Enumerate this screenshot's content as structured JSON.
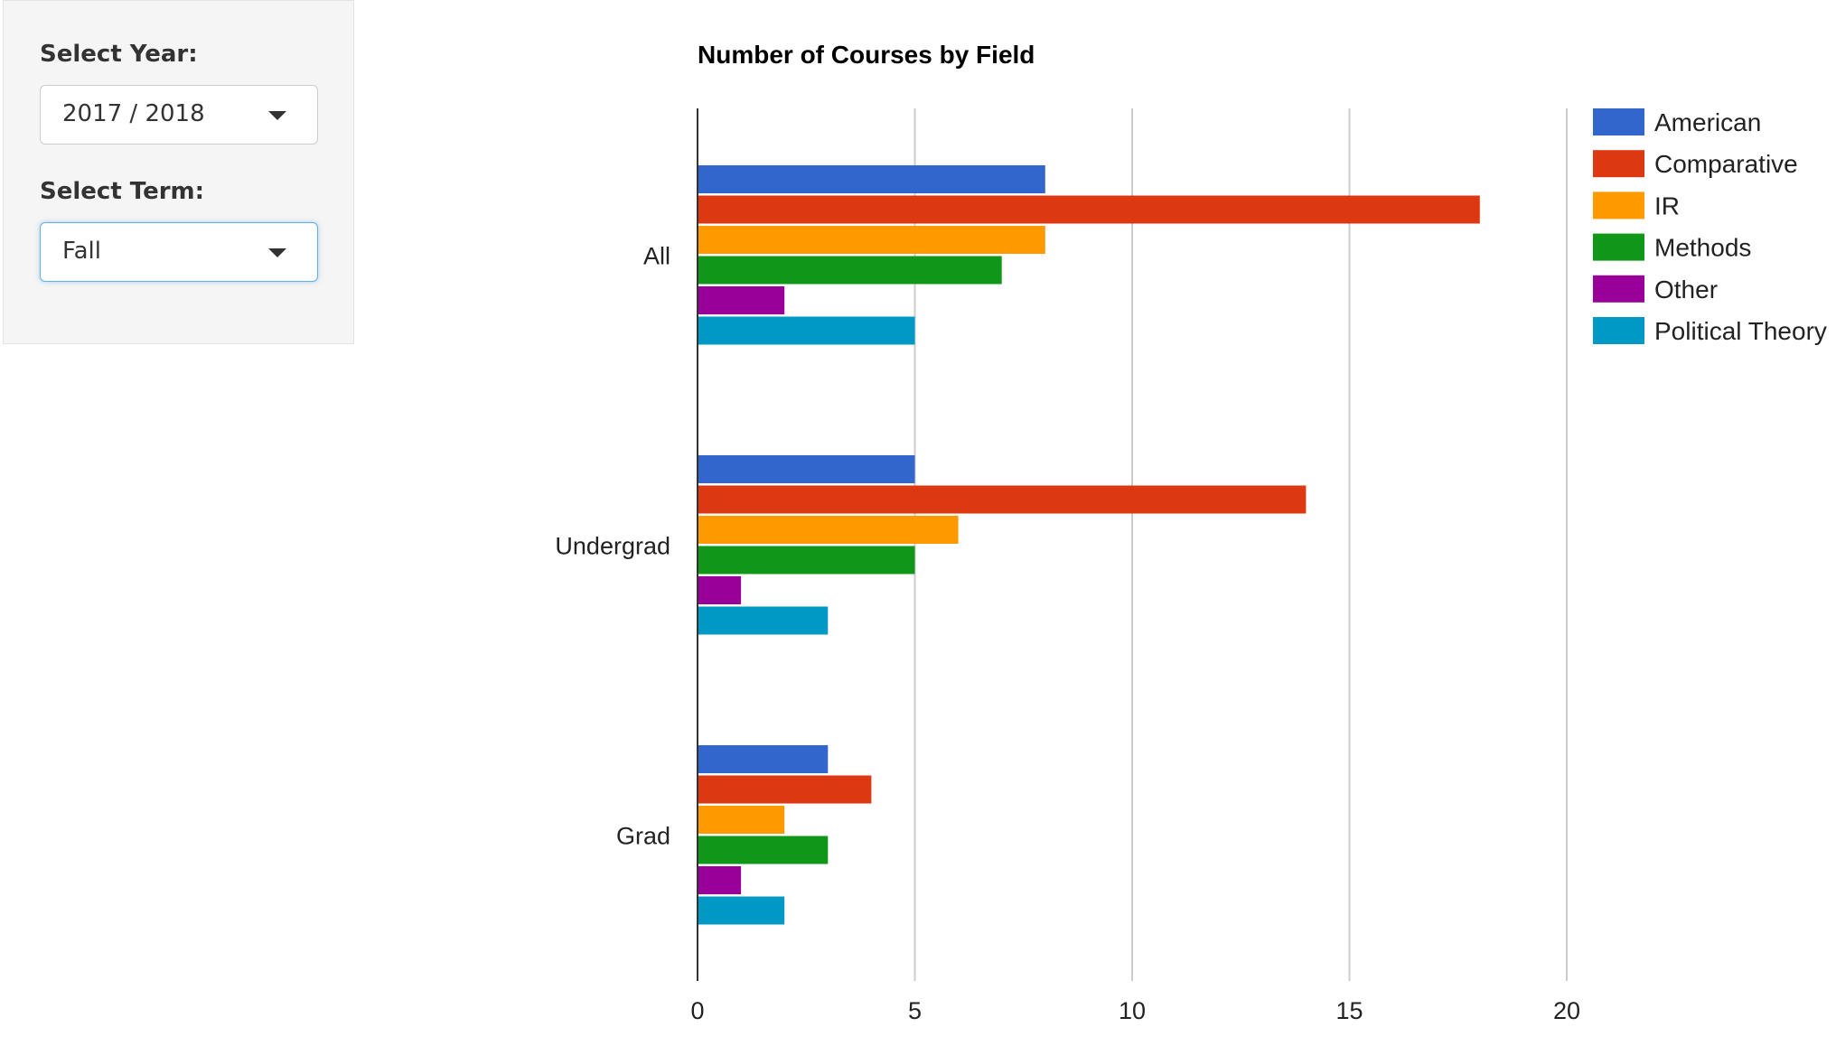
{
  "sidebar": {
    "year": {
      "label": "Select Year:",
      "value": "2017 / 2018"
    },
    "term": {
      "label": "Select Term:",
      "value": "Fall"
    }
  },
  "chart_data": {
    "type": "bar",
    "orientation": "horizontal",
    "title": "Number of Courses by Field",
    "categories": [
      "All",
      "Undergrad",
      "Grad"
    ],
    "series": [
      {
        "name": "American",
        "color": "#3366cc",
        "values": [
          8,
          5,
          3
        ]
      },
      {
        "name": "Comparative",
        "color": "#dc3912",
        "values": [
          18,
          14,
          4
        ]
      },
      {
        "name": "IR",
        "color": "#ff9900",
        "values": [
          8,
          6,
          2
        ]
      },
      {
        "name": "Methods",
        "color": "#109618",
        "values": [
          7,
          5,
          3
        ]
      },
      {
        "name": "Other",
        "color": "#990099",
        "values": [
          2,
          1,
          1
        ]
      },
      {
        "name": "Political Theory",
        "color": "#0099c6",
        "values": [
          5,
          3,
          2
        ]
      }
    ],
    "xlim": [
      0,
      20
    ],
    "xticks": [
      0,
      5,
      10,
      15,
      20
    ],
    "grid": true,
    "legend": "right"
  }
}
